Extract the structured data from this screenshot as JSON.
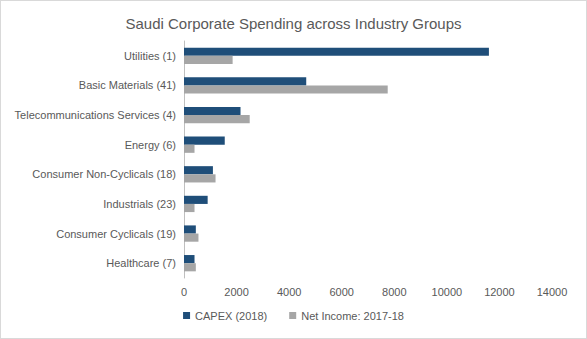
{
  "chart_data": {
    "type": "bar",
    "orientation": "horizontal",
    "title": "Saudi Corporate Spending across Industry Groups",
    "categories": [
      "Utilities (1)",
      "Basic Materials (41)",
      "Telecommunications Services (4)",
      "Energy (6)",
      "Consumer Non-Cyclicals (18)",
      "Industrials (23)",
      "Consumer Cyclicals (19)",
      "Healthcare (7)"
    ],
    "series": [
      {
        "name": "CAPEX (2018)",
        "color": "#1f4e79",
        "values": [
          11600,
          4650,
          2150,
          1550,
          1100,
          900,
          450,
          400
        ]
      },
      {
        "name": "Net Income: 2017-18",
        "color": "#a6a6a6",
        "values": [
          1850,
          7750,
          2500,
          400,
          1200,
          400,
          550,
          450
        ]
      }
    ],
    "xlim": [
      0,
      14000
    ],
    "xticks": [
      0,
      2000,
      4000,
      6000,
      8000,
      10000,
      12000,
      14000
    ],
    "grid": false,
    "legend": "bottom"
  }
}
